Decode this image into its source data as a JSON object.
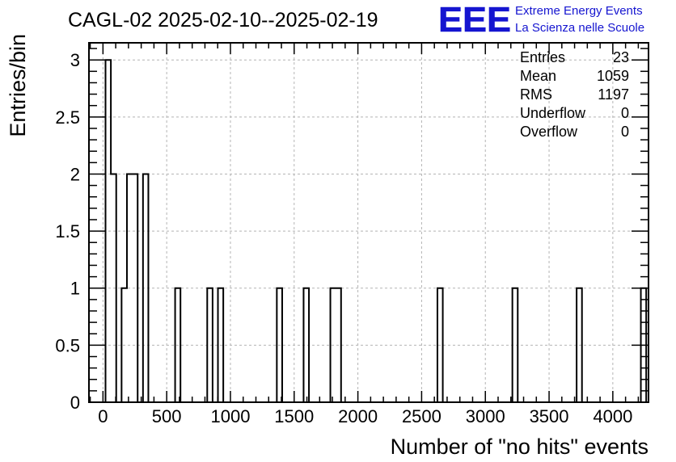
{
  "chart_data": {
    "type": "bar",
    "title": "CAGL-02 2025-02-10--2025-02-19",
    "xlabel": "Number of \"no hits\" events",
    "ylabel": "Entries/bin",
    "xlim": [
      -110,
      4280
    ],
    "ylim": [
      0,
      3.15
    ],
    "xticks": [
      0,
      500,
      1000,
      1500,
      2000,
      2500,
      3000,
      3500,
      4000
    ],
    "yticks": [
      0,
      0.5,
      1,
      1.5,
      2,
      2.5,
      3
    ],
    "ytick_labels": [
      "0",
      "0.5",
      "1",
      "1.5",
      "2",
      "2.5",
      "3"
    ],
    "grid": true,
    "bins": {
      "start": 20,
      "width": 42
    },
    "values": [
      3,
      2,
      0,
      1,
      2,
      2,
      0,
      2,
      0,
      0,
      0,
      0,
      0,
      1,
      0,
      0,
      0,
      0,
      0,
      1,
      0,
      1,
      0,
      0,
      0,
      0,
      0,
      0,
      0,
      0,
      0,
      0,
      1,
      0,
      0,
      0,
      0,
      1,
      0,
      0,
      0,
      0,
      1,
      1,
      0,
      0,
      0,
      0,
      0,
      0,
      0,
      0,
      0,
      0,
      0,
      0,
      0,
      0,
      0,
      0,
      0,
      0,
      1,
      0,
      0,
      0,
      0,
      0,
      0,
      0,
      0,
      0,
      0,
      0,
      0,
      0,
      1,
      0,
      0,
      0,
      0,
      0,
      0,
      0,
      0,
      0,
      0,
      0,
      1,
      0,
      0,
      0,
      0,
      0,
      0,
      0,
      0,
      0,
      0,
      0,
      1
    ],
    "stats": [
      {
        "label": "Entries",
        "value": "23"
      },
      {
        "label": "Mean",
        "value": "1059"
      },
      {
        "label": "RMS",
        "value": "1197"
      },
      {
        "label": "Underflow",
        "value": "0"
      },
      {
        "label": "Overflow",
        "value": "0"
      }
    ]
  },
  "logo": {
    "mark": "EEE",
    "line1": "Extreme Energy Events",
    "line2": "La Scienza nelle Scuole",
    "color": "#1515d0"
  }
}
